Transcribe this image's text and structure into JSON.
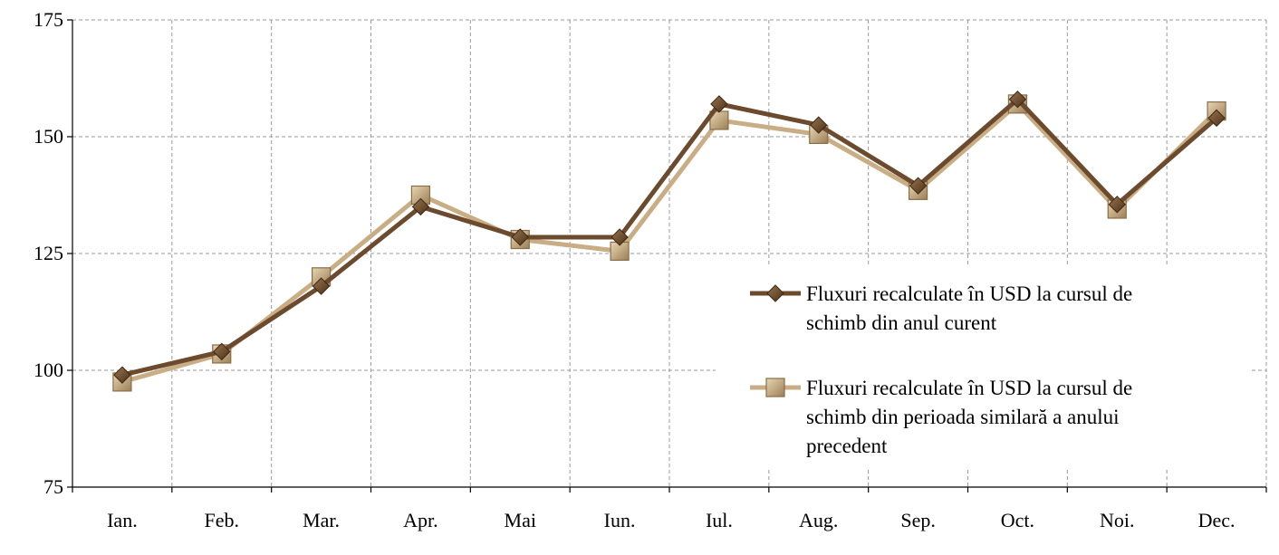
{
  "chart_data": {
    "type": "line",
    "title": "",
    "xlabel": "",
    "ylabel": "",
    "categories": [
      "Ian.",
      "Feb.",
      "Mar.",
      "Apr.",
      "Mai",
      "Iun.",
      "Iul.",
      "Aug.",
      "Sep.",
      "Oct.",
      "Noi.",
      "Dec."
    ],
    "ylim": [
      75,
      175
    ],
    "yticks": [
      75,
      100,
      125,
      150,
      175
    ],
    "grid": true,
    "legend_position": "right",
    "series": [
      {
        "name": "Fluxuri recalculate în USD la cursul de schimb din anul curent",
        "name_lines": [
          "Fluxuri recalculate în USD la cursul de",
          "schimb din anul curent"
        ],
        "color": "#6b4a2e",
        "marker": "diamond",
        "values": [
          99,
          104,
          118,
          135,
          128.5,
          128.5,
          157,
          152.5,
          139.5,
          158,
          135.5,
          154
        ]
      },
      {
        "name": "Fluxuri recalculate în USD la cursul de schimb din perioada similară a anului precedent",
        "name_lines": [
          "Fluxuri recalculate în USD la cursul de",
          "schimb din perioada similară a anului",
          "precedent"
        ],
        "color": "#c9ad84",
        "marker": "square",
        "values": [
          97.5,
          103.5,
          120,
          137.5,
          128,
          125.5,
          153.5,
          150.5,
          138.5,
          157,
          134.5,
          155.5
        ]
      }
    ]
  }
}
